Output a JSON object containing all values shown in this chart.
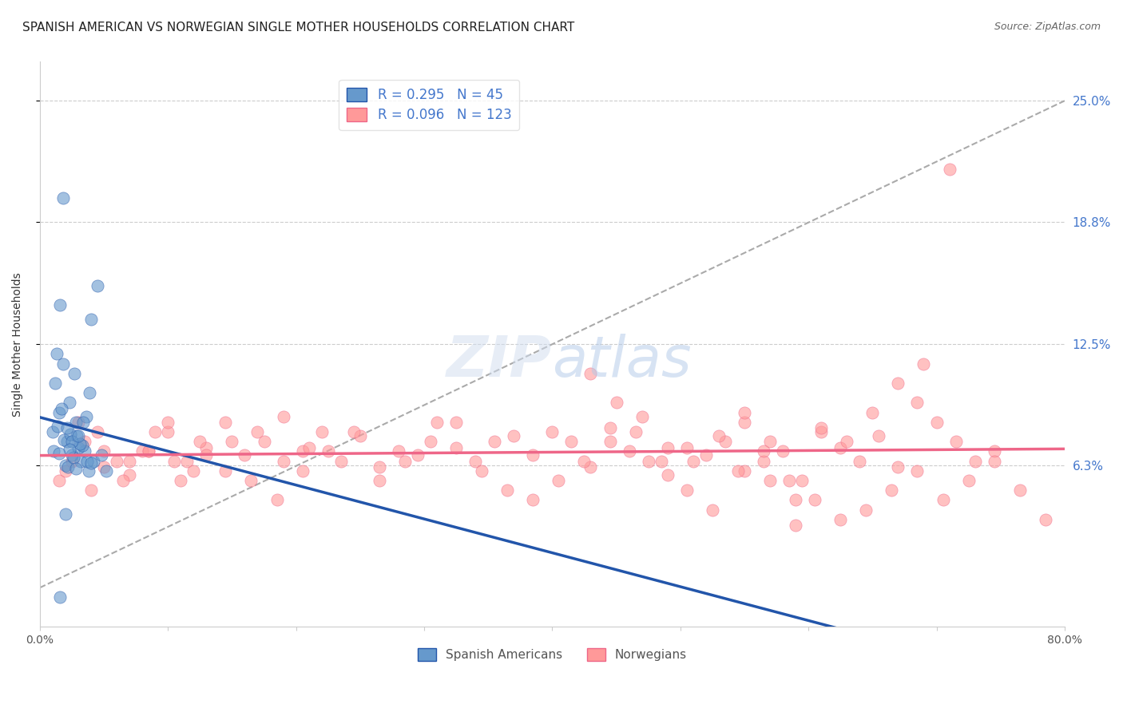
{
  "title": "SPANISH AMERICAN VS NORWEGIAN SINGLE MOTHER HOUSEHOLDS CORRELATION CHART",
  "source": "Source: ZipAtlas.com",
  "ylabel": "Single Mother Households",
  "xlabel": "",
  "x_ticks": [
    0.0,
    10.0,
    20.0,
    30.0,
    40.0,
    50.0,
    60.0,
    70.0,
    80.0
  ],
  "x_tick_labels": [
    "0.0%",
    "",
    "",
    "",
    "",
    "",
    "",
    "",
    "80.0%"
  ],
  "y_tick_labels": [
    "6.3%",
    "12.5%",
    "18.8%",
    "25.0%"
  ],
  "y_tick_values": [
    6.3,
    12.5,
    18.8,
    25.0
  ],
  "xlim": [
    0.0,
    80.0
  ],
  "ylim": [
    -2.0,
    27.0
  ],
  "blue_R": 0.295,
  "blue_N": 45,
  "pink_R": 0.096,
  "pink_N": 123,
  "blue_color": "#6699CC",
  "pink_color": "#FF9999",
  "blue_line_color": "#2255AA",
  "pink_line_color": "#EE6688",
  "diag_color": "#AAAAAA",
  "legend_blue_label": "Spanish Americans",
  "legend_pink_label": "Norwegians",
  "watermark": "ZIPatlas",
  "title_fontsize": 11,
  "source_fontsize": 9,
  "background_color": "#FFFFFF",
  "blue_scatter_x": [
    2.1,
    3.5,
    4.0,
    1.5,
    2.8,
    3.2,
    1.8,
    2.5,
    3.0,
    1.2,
    2.0,
    2.9,
    1.6,
    3.8,
    2.3,
    4.5,
    1.0,
    2.7,
    3.3,
    1.9,
    2.2,
    3.6,
    1.3,
    4.2,
    2.4,
    3.9,
    1.7,
    2.6,
    3.1,
    1.4,
    2.8,
    4.8,
    1.1,
    3.4,
    2.0,
    5.2,
    1.8,
    3.7,
    2.5,
    1.6,
    4.0,
    2.3,
    3.0,
    1.5,
    2.1
  ],
  "blue_scatter_y": [
    7.5,
    7.0,
    13.8,
    9.0,
    8.5,
    6.5,
    11.5,
    6.8,
    7.2,
    10.5,
    6.3,
    7.8,
    14.5,
    6.0,
    9.5,
    15.5,
    8.0,
    11.0,
    7.3,
    7.6,
    6.2,
    8.8,
    12.0,
    6.5,
    7.9,
    10.0,
    9.2,
    6.7,
    7.4,
    8.3,
    6.1,
    6.8,
    7.0,
    8.5,
    3.8,
    6.0,
    20.0,
    6.5,
    7.5,
    -0.5,
    6.4,
    7.1,
    7.8,
    6.9,
    8.2
  ],
  "pink_scatter_x": [
    1.5,
    2.0,
    3.5,
    5.0,
    7.0,
    8.5,
    10.0,
    11.5,
    13.0,
    14.5,
    16.0,
    17.5,
    19.0,
    20.5,
    22.0,
    23.5,
    25.0,
    26.5,
    28.0,
    29.5,
    31.0,
    32.5,
    34.0,
    35.5,
    37.0,
    38.5,
    40.0,
    41.5,
    43.0,
    44.5,
    46.0,
    47.5,
    49.0,
    50.5,
    52.0,
    53.5,
    55.0,
    56.5,
    58.0,
    59.5,
    61.0,
    62.5,
    64.0,
    65.5,
    67.0,
    68.5,
    70.0,
    71.5,
    73.0,
    74.5,
    55.0,
    57.0,
    59.0,
    45.0,
    47.0,
    49.0,
    51.0,
    53.0,
    55.0,
    57.0,
    59.0,
    61.0,
    63.0,
    65.0,
    3.0,
    5.0,
    7.0,
    9.0,
    11.0,
    13.0,
    15.0,
    17.0,
    19.0,
    21.0,
    4.0,
    6.0,
    8.0,
    10.0,
    12.0,
    2.5,
    4.5,
    6.5,
    8.5,
    10.5,
    12.5,
    14.5,
    16.5,
    18.5,
    20.5,
    22.5,
    24.5,
    26.5,
    28.5,
    30.5,
    32.5,
    34.5,
    36.5,
    38.5,
    40.5,
    42.5,
    44.5,
    46.5,
    48.5,
    50.5,
    52.5,
    54.5,
    56.5,
    58.5,
    60.5,
    62.5,
    64.5,
    66.5,
    68.5,
    70.5,
    72.5,
    74.5,
    76.5,
    78.5,
    43.0,
    67.0,
    69.0,
    71.0
  ],
  "pink_scatter_y": [
    5.5,
    6.0,
    7.5,
    6.2,
    5.8,
    7.0,
    8.0,
    6.5,
    7.2,
    8.5,
    6.8,
    7.5,
    8.8,
    7.0,
    8.0,
    6.5,
    7.8,
    6.2,
    7.0,
    6.8,
    8.5,
    7.2,
    6.5,
    7.5,
    7.8,
    6.8,
    8.0,
    7.5,
    6.2,
    8.2,
    7.0,
    6.5,
    5.8,
    7.2,
    6.8,
    7.5,
    8.5,
    6.5,
    7.0,
    5.5,
    8.0,
    7.2,
    6.5,
    7.8,
    6.2,
    9.5,
    8.5,
    7.5,
    6.5,
    7.0,
    6.0,
    5.5,
    3.2,
    9.5,
    8.8,
    7.2,
    6.5,
    7.8,
    9.0,
    7.5,
    4.5,
    8.2,
    7.5,
    9.0,
    8.5,
    7.0,
    6.5,
    8.0,
    5.5,
    6.8,
    7.5,
    8.0,
    6.5,
    7.2,
    5.0,
    6.5,
    7.0,
    8.5,
    6.0,
    6.5,
    8.0,
    5.5,
    7.0,
    6.5,
    7.5,
    6.0,
    5.5,
    4.5,
    6.0,
    7.0,
    8.0,
    5.5,
    6.5,
    7.5,
    8.5,
    6.0,
    5.0,
    4.5,
    5.5,
    6.5,
    7.5,
    8.0,
    6.5,
    5.0,
    4.0,
    6.0,
    7.0,
    5.5,
    4.5,
    3.5,
    4.0,
    5.0,
    6.0,
    4.5,
    5.5,
    6.5,
    5.0,
    3.5,
    11.0,
    10.5,
    11.5,
    21.5
  ]
}
